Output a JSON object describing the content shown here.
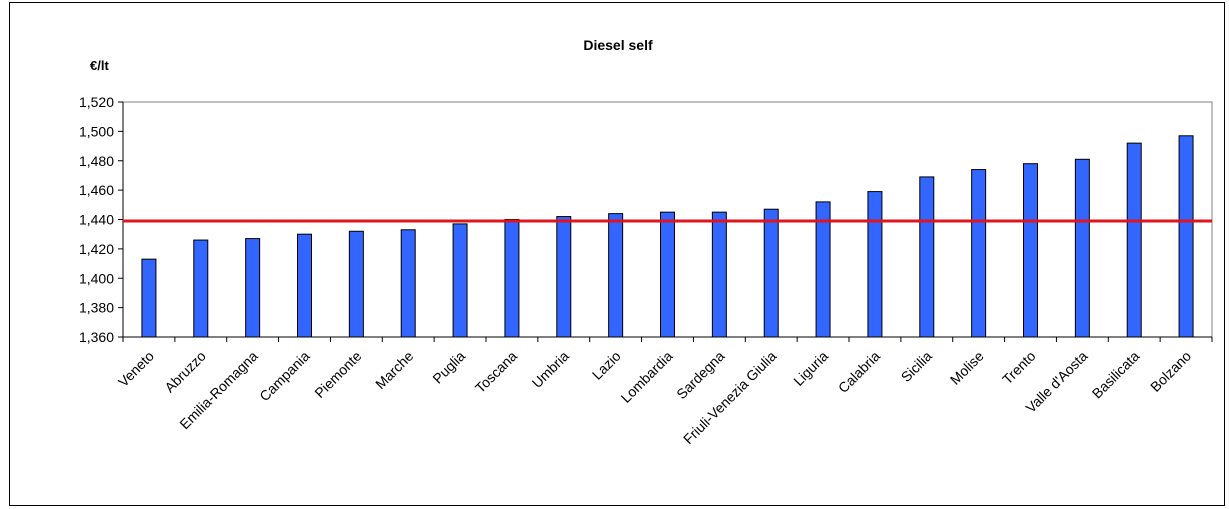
{
  "chart_data": {
    "type": "bar",
    "title": "Diesel self",
    "ylabel": "€/lt",
    "xlabel": "",
    "ylim": [
      1.36,
      1.52
    ],
    "yticks": [
      "1,360",
      "1,380",
      "1,400",
      "1,420",
      "1,440",
      "1,460",
      "1,480",
      "1,500",
      "1,520"
    ],
    "categories": [
      "Veneto",
      "Abruzzo",
      "Emilia-Romagna",
      "Campania",
      "Piemonte",
      "Marche",
      "Puglia",
      "Toscana",
      "Umbria",
      "Lazio",
      "Lombardia",
      "Sardegna",
      "Friuli-Venezia Giulia",
      "Liguria",
      "Calabria",
      "Sicilia",
      "Molise",
      "Trento",
      "Valle d'Aosta",
      "Basilicata",
      "Bolzano"
    ],
    "values": [
      1.413,
      1.426,
      1.427,
      1.43,
      1.432,
      1.433,
      1.437,
      1.44,
      1.442,
      1.444,
      1.445,
      1.445,
      1.447,
      1.452,
      1.459,
      1.469,
      1.474,
      1.478,
      1.481,
      1.492,
      1.497
    ],
    "reference_line": {
      "value": 1.439,
      "color": "#e0141e"
    },
    "bar_color": "#3366ff",
    "grid": false,
    "legend": "none"
  }
}
